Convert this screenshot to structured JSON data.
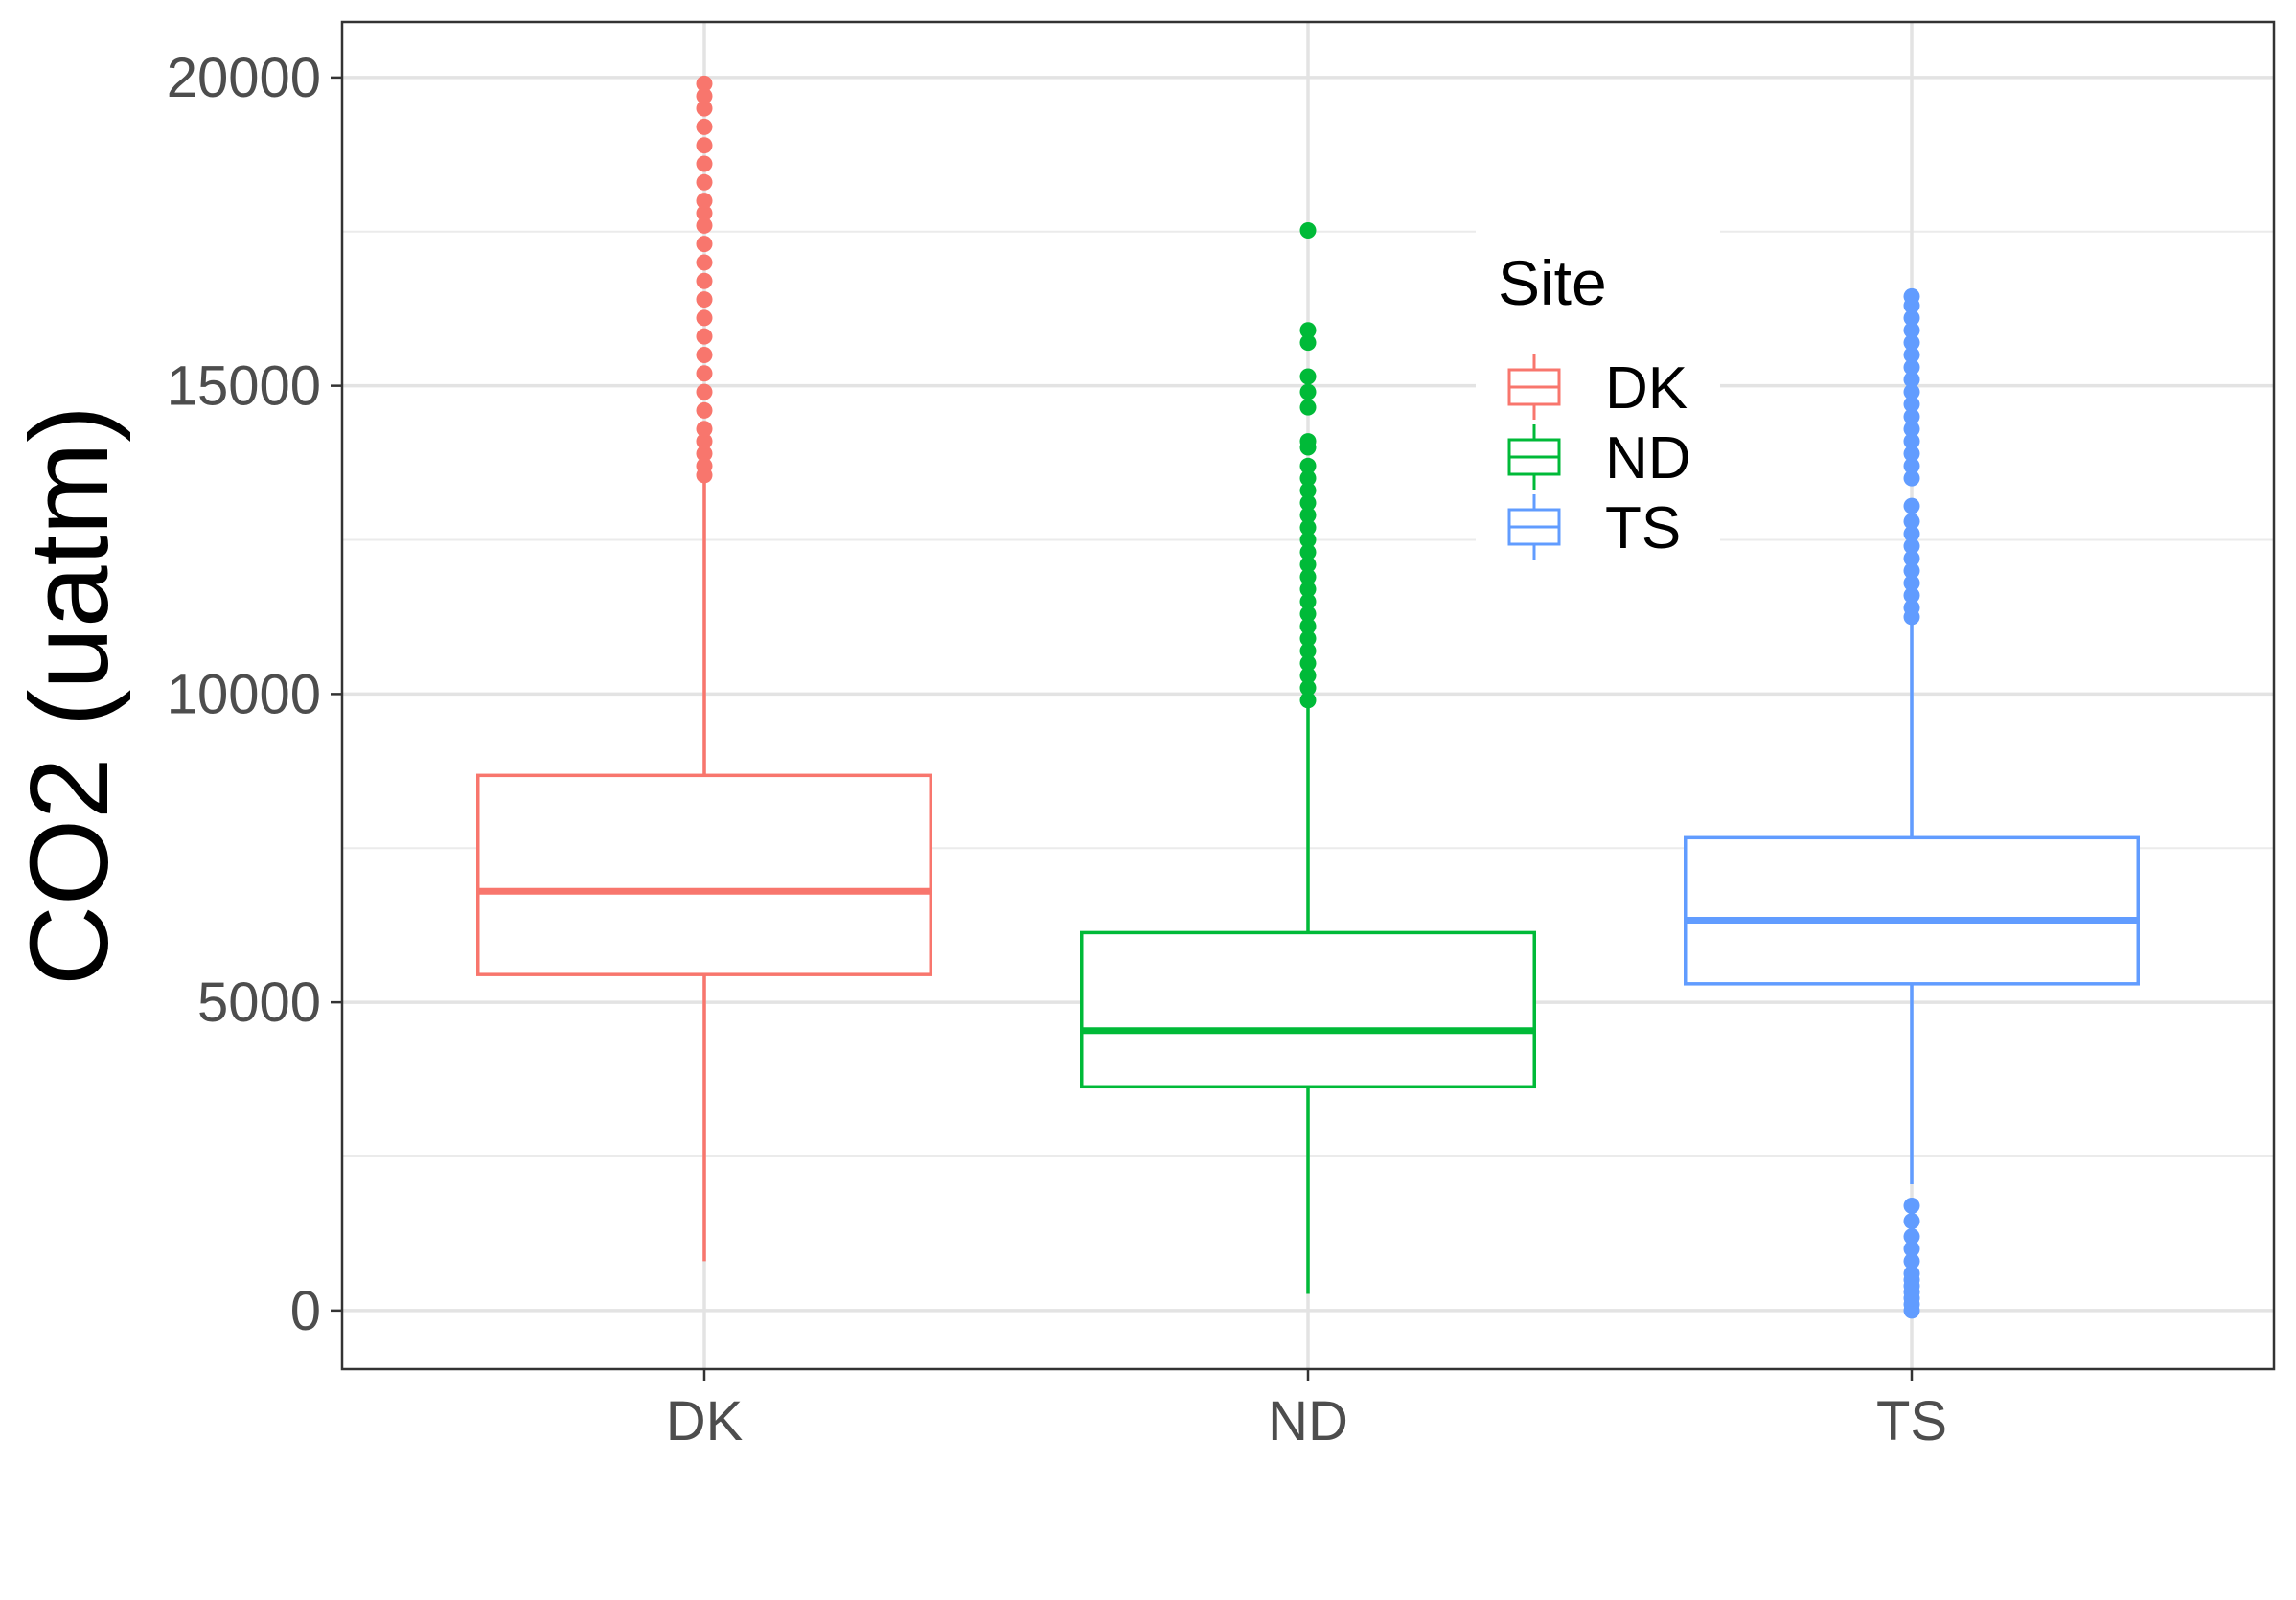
{
  "chart_data": {
    "type": "boxplot",
    "title": "",
    "xlabel": "",
    "ylabel": "CO2 (uatm)",
    "ylim": [
      -950,
      20900
    ],
    "y_ticks": [
      0,
      5000,
      10000,
      15000,
      20000
    ],
    "y_tick_labels": [
      "0",
      "5000",
      "10000",
      "15000",
      "20000"
    ],
    "grid": true,
    "legend": {
      "title": "Site",
      "position": "top-right",
      "entries": [
        "DK",
        "ND",
        "TS"
      ]
    },
    "categories": [
      "DK",
      "ND",
      "TS"
    ],
    "series": [
      {
        "name": "DK",
        "color": "#F8766D",
        "whisker_low": 800,
        "q1": 5450,
        "median": 6800,
        "q3": 8680,
        "whisker_high": 13500,
        "outliers": [
          13550,
          13700,
          13900,
          14100,
          14300,
          14600,
          14900,
          15200,
          15500,
          15800,
          16100,
          16400,
          16700,
          17000,
          17300,
          17600,
          17800,
          18000,
          18300,
          18600,
          18900,
          19200,
          19500,
          19700,
          19900
        ]
      },
      {
        "name": "ND",
        "color": "#00BA38",
        "whisker_low": 270,
        "q1": 3630,
        "median": 4540,
        "q3": 6130,
        "whisker_high": 9850,
        "outliers": [
          9900,
          10100,
          10300,
          10500,
          10700,
          10900,
          11100,
          11300,
          11500,
          11700,
          11900,
          12100,
          12300,
          12500,
          12700,
          12900,
          13100,
          13300,
          13500,
          13700,
          14000,
          14100,
          14650,
          14900,
          15150,
          15700,
          15900,
          17520
        ]
      },
      {
        "name": "TS",
        "color": "#619CFF",
        "whisker_low": 2050,
        "q1": 5300,
        "median": 6330,
        "q3": 7670,
        "whisker_high": 11200,
        "outliers": [
          0,
          100,
          200,
          300,
          400,
          500,
          600,
          800,
          1000,
          1200,
          1450,
          1700,
          11250,
          11400,
          11600,
          11800,
          12000,
          12200,
          12400,
          12600,
          12800,
          13050,
          13500,
          13700,
          13900,
          14100,
          14300,
          14500,
          14700,
          14900,
          15100,
          15300,
          15500,
          15700,
          15900,
          16100,
          16300,
          16450
        ]
      }
    ]
  }
}
